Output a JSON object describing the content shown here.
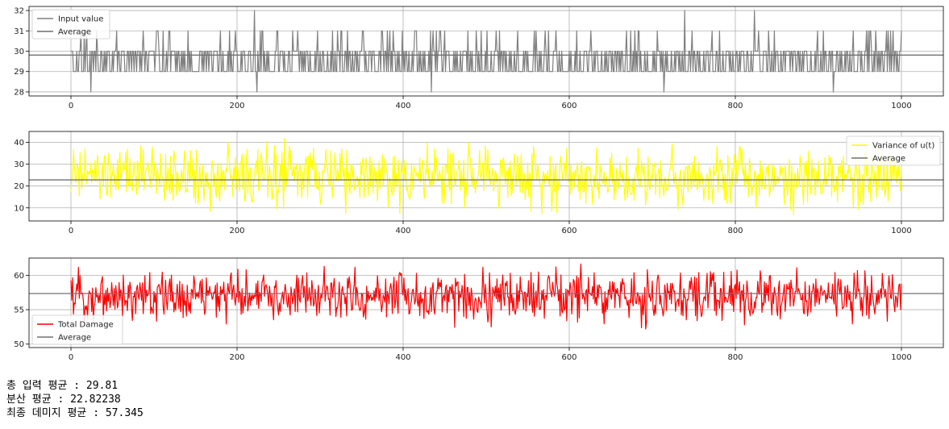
{
  "chart_data": [
    {
      "type": "line",
      "xlim": [
        0,
        1000
      ],
      "ylim": [
        27.8,
        32.2
      ],
      "x_ticks": [
        0,
        200,
        400,
        600,
        800,
        1000
      ],
      "y_ticks": [
        28,
        29,
        30,
        31,
        32
      ],
      "grid": true,
      "legend_position": "top-left",
      "series": [
        {
          "name": "Input value",
          "color": "#808080",
          "pattern": "discrete",
          "values_range": [
            28,
            32
          ],
          "spikes_high": [
            [
              221,
              32
            ],
            [
              739,
              32
            ],
            [
              823,
              32
            ]
          ],
          "spikes_low": [
            [
              24,
              28
            ],
            [
              224,
              28
            ],
            [
              434,
              28
            ],
            [
              714,
              28
            ],
            [
              918,
              28
            ]
          ]
        },
        {
          "name": "Average",
          "color": "#707070",
          "constant": 29.81
        }
      ]
    },
    {
      "type": "line",
      "xlim": [
        0,
        1000
      ],
      "ylim": [
        4,
        45
      ],
      "x_ticks": [
        0,
        200,
        400,
        600,
        800,
        1000
      ],
      "y_ticks": [
        10,
        20,
        30,
        40
      ],
      "grid": true,
      "legend_position": "top-right",
      "series": [
        {
          "name": "Variance of u(t)",
          "color": "#ffff00",
          "pattern": "noise",
          "values_range": [
            6,
            43
          ]
        },
        {
          "name": "Average",
          "color": "#707070",
          "constant": 22.82238
        }
      ]
    },
    {
      "type": "line",
      "xlim": [
        0,
        1000
      ],
      "ylim": [
        49.5,
        62.5
      ],
      "x_ticks": [
        0,
        200,
        400,
        600,
        800,
        1000
      ],
      "y_ticks": [
        50,
        55,
        60
      ],
      "grid": true,
      "legend_position": "bottom-left",
      "series": [
        {
          "name": "Total Damage",
          "color": "#ff0000",
          "pattern": "noise",
          "values_range": [
            52,
            62
          ]
        },
        {
          "name": "Average",
          "color": "#707070",
          "constant": 57.345
        }
      ]
    }
  ],
  "summary": {
    "line1": "총 입력 평균 : 29.81",
    "line2": "분산 평균 : 22.82238",
    "line3": "최종 데미지 평균 : 57.345"
  }
}
